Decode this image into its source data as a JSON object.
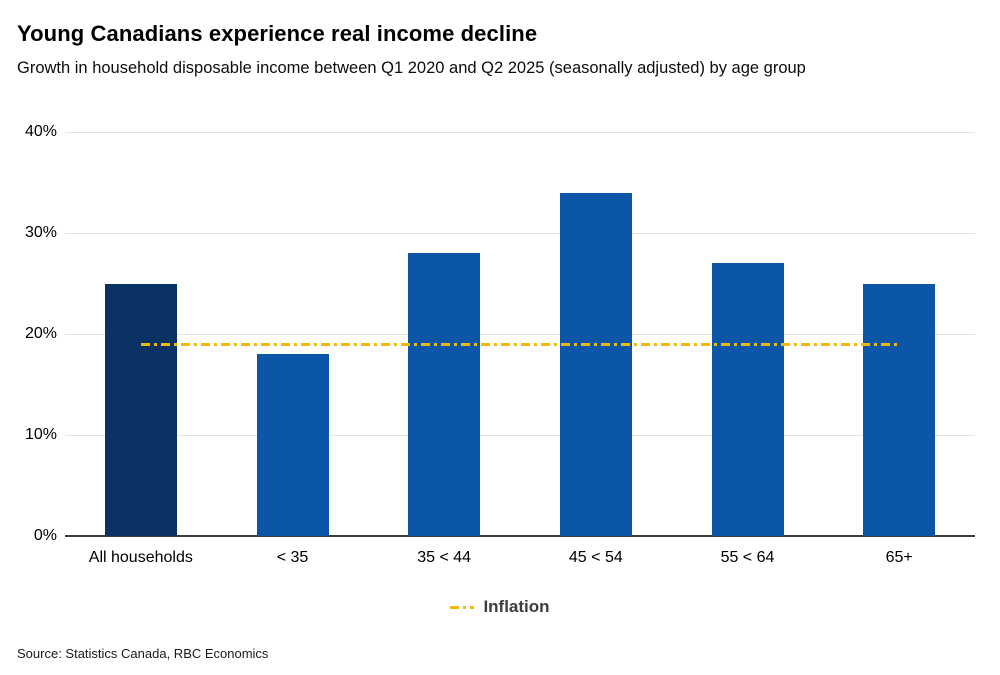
{
  "header": {
    "title": "Young Canadians experience real income decline",
    "subtitle": "Growth in household disposable income between Q1 2020 and Q2 2025 (seasonally adjusted) by age group"
  },
  "chart_data": {
    "type": "bar",
    "title": "Young Canadians experience real income decline",
    "subtitle": "Growth in household disposable income between Q1 2020 and Q2 2025 (seasonally adjusted) by age group",
    "categories": [
      "All households",
      "< 35",
      "35 < 44",
      "45 < 54",
      "55 < 64",
      "65+"
    ],
    "values": [
      25,
      18,
      28,
      34,
      27,
      25
    ],
    "unit": "%",
    "reference_line": {
      "name": "Inflation",
      "value": 19,
      "style": "dash-dot"
    },
    "xlabel": "",
    "ylabel": "",
    "ylim": [
      0,
      40
    ],
    "y_ticks": [
      "0%",
      "10%",
      "20%",
      "30%",
      "40%"
    ],
    "grid": "horizontal",
    "legend_position": "bottom",
    "colors": {
      "highlight_bar": "#0a3264",
      "bar": "#0c56a7",
      "reference_line": "#f3b705",
      "gridline": "#e2e2e2",
      "axis_line": "#3c3c3c"
    }
  },
  "legend": {
    "items": [
      {
        "label": "Inflation",
        "color": "#f3b705"
      }
    ]
  },
  "footer": {
    "source": "Source: Statistics Canada, RBC Economics"
  }
}
